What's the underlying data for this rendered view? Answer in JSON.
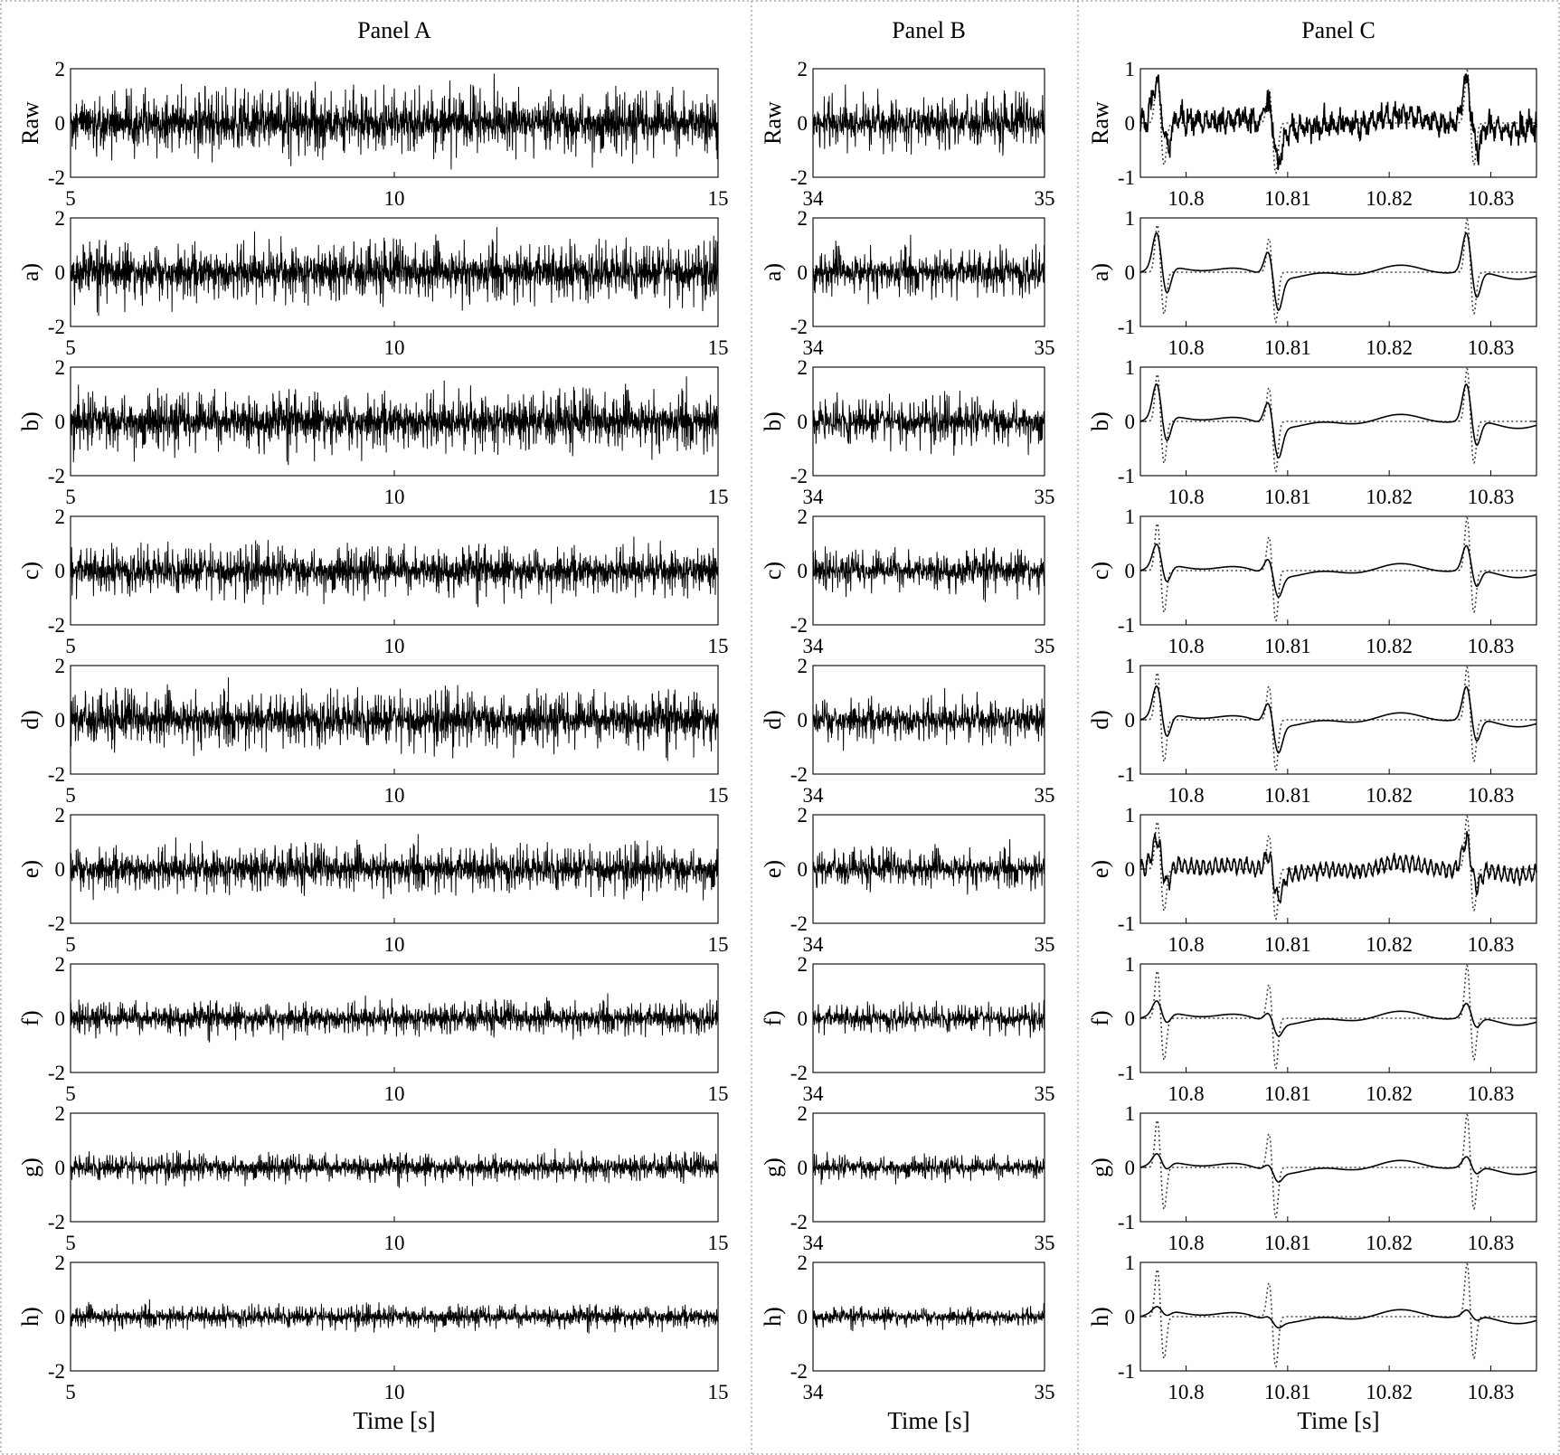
{
  "chart_data": [
    {
      "type": "line",
      "title": "Panel A",
      "xlabel": "Time [s]",
      "xlim": [
        5,
        15
      ],
      "ylim": [
        -2,
        2
      ],
      "xticks": [
        "5",
        "10",
        "15"
      ],
      "yticks": [
        "-2",
        "0",
        "2"
      ],
      "rows": [
        {
          "label": "Raw",
          "amplitude": 1.0
        },
        {
          "label": "a)",
          "amplitude": 0.9
        },
        {
          "label": "b)",
          "amplitude": 0.9
        },
        {
          "label": "c)",
          "amplitude": 0.75
        },
        {
          "label": "d)",
          "amplitude": 0.85
        },
        {
          "label": "e)",
          "amplitude": 0.7
        },
        {
          "label": "f)",
          "amplitude": 0.5
        },
        {
          "label": "g)",
          "amplitude": 0.42
        },
        {
          "label": "h)",
          "amplitude": 0.35
        }
      ]
    },
    {
      "type": "line",
      "title": "Panel B",
      "xlabel": "Time [s]",
      "xlim": [
        34,
        35
      ],
      "ylim": [
        -2,
        2
      ],
      "xticks": [
        "34",
        "35"
      ],
      "yticks": [
        "-2",
        "0",
        "2"
      ],
      "rows": [
        {
          "label": "Raw",
          "amplitude": 0.85
        },
        {
          "label": "a)",
          "amplitude": 0.75
        },
        {
          "label": "b)",
          "amplitude": 0.75
        },
        {
          "label": "c)",
          "amplitude": 0.65
        },
        {
          "label": "d)",
          "amplitude": 0.7
        },
        {
          "label": "e)",
          "amplitude": 0.6
        },
        {
          "label": "f)",
          "amplitude": 0.45
        },
        {
          "label": "g)",
          "amplitude": 0.38
        },
        {
          "label": "h)",
          "amplitude": 0.3
        }
      ]
    },
    {
      "type": "line",
      "title": "Panel C",
      "xlabel": "Time [s]",
      "xlim": [
        10.7955,
        10.8345
      ],
      "ylim": [
        -1,
        1
      ],
      "xticks": [
        "10.8",
        "10.81",
        "10.82",
        "10.83"
      ],
      "xtick_values": [
        10.8,
        10.81,
        10.82,
        10.83
      ],
      "yticks": [
        "-1",
        "0",
        "1"
      ],
      "spikes": [
        {
          "t": 10.7975,
          "peak": 0.9,
          "trough": -0.8
        },
        {
          "t": 10.8085,
          "peak": 0.65,
          "trough": -0.95
        },
        {
          "t": 10.828,
          "peak": 1.0,
          "trough": -0.8
        }
      ],
      "rows": [
        {
          "label": "Raw"
        },
        {
          "label": "a)"
        },
        {
          "label": "b)"
        },
        {
          "label": "c)"
        },
        {
          "label": "d)"
        },
        {
          "label": "e)"
        },
        {
          "label": "f)"
        },
        {
          "label": "g)"
        },
        {
          "label": "h)"
        }
      ]
    }
  ]
}
